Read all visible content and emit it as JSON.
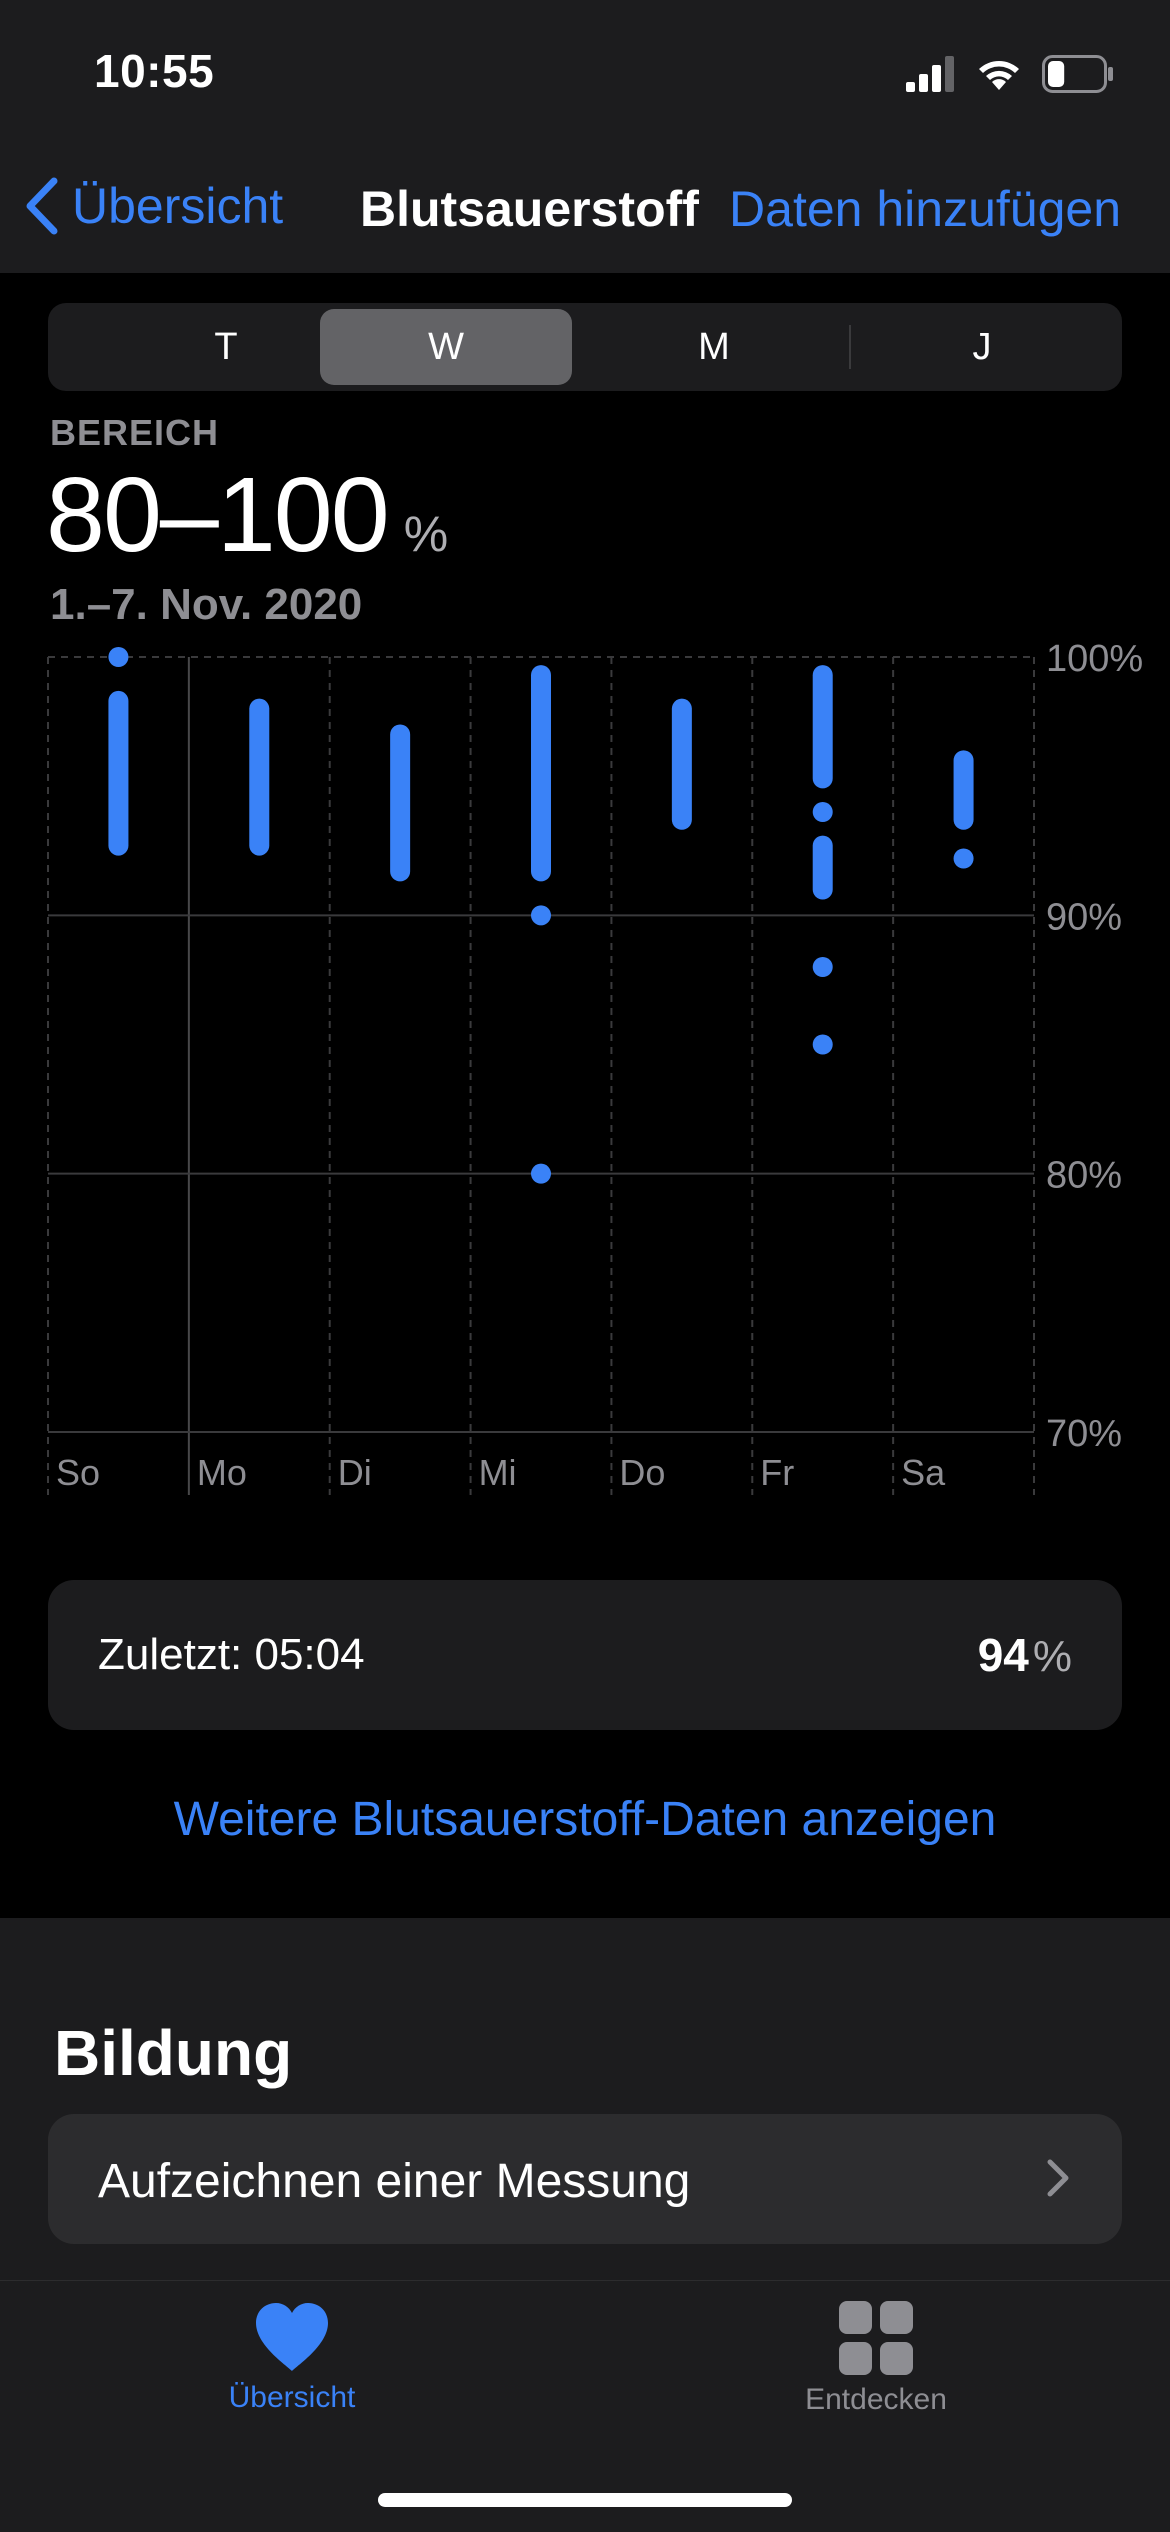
{
  "status": {
    "time": "10:55",
    "battery_level": 0.3
  },
  "nav": {
    "back_label": "Übersicht",
    "title": "Blutsauerstoff",
    "action_label": "Daten hinzufügen"
  },
  "segments": [
    {
      "label": "T",
      "active": false
    },
    {
      "label": "W",
      "active": true
    },
    {
      "label": "M",
      "active": false
    },
    {
      "label": "J",
      "active": false
    }
  ],
  "summary": {
    "label": "BEREICH",
    "value": "80–100",
    "unit": "%",
    "dates": "1.–7. Nov. 2020"
  },
  "chart_data": {
    "type": "range",
    "categories": [
      "So",
      "Mo",
      "Di",
      "Mi",
      "Do",
      "Fr",
      "Sa"
    ],
    "y_tick_labels": [
      "100%",
      "90%",
      "80%",
      "70%"
    ],
    "ylim": [
      70,
      100
    ],
    "grid": true,
    "series_color": "#3a82f7",
    "ranges": [
      {
        "day": "So",
        "segments": [
          [
            100,
            100
          ],
          [
            92.7,
            98.3
          ]
        ]
      },
      {
        "day": "Mo",
        "segments": [
          [
            92.7,
            98
          ]
        ]
      },
      {
        "day": "Di",
        "segments": [
          [
            91.7,
            97
          ]
        ]
      },
      {
        "day": "Mi",
        "segments": [
          [
            91.7,
            99.3
          ],
          [
            90,
            90
          ],
          [
            80,
            80
          ]
        ]
      },
      {
        "day": "Do",
        "segments": [
          [
            93.7,
            98
          ]
        ]
      },
      {
        "day": "Fr",
        "segments": [
          [
            95.3,
            99.3
          ],
          [
            94,
            94
          ],
          [
            91,
            92.7
          ],
          [
            88,
            88
          ],
          [
            85,
            85
          ]
        ]
      },
      {
        "day": "Sa",
        "segments": [
          [
            93.7,
            96
          ],
          [
            92.2,
            92.2
          ]
        ]
      }
    ]
  },
  "latest": {
    "label": "Zuletzt: 05:04",
    "value": "94",
    "unit": "%"
  },
  "more_link": "Weitere Blutsauerstoff-Daten anzeigen",
  "education": {
    "title": "Bildung",
    "row_label": "Aufzeichnen einer Messung"
  },
  "tabbar": {
    "tabs": [
      {
        "label": "Übersicht",
        "icon": "heart-icon",
        "active": true
      },
      {
        "label": "Entdecken",
        "icon": "grid-icon",
        "active": false
      }
    ]
  },
  "colors": {
    "accent": "#3a82f7",
    "background": "#000000",
    "card": "#1c1c1e"
  }
}
